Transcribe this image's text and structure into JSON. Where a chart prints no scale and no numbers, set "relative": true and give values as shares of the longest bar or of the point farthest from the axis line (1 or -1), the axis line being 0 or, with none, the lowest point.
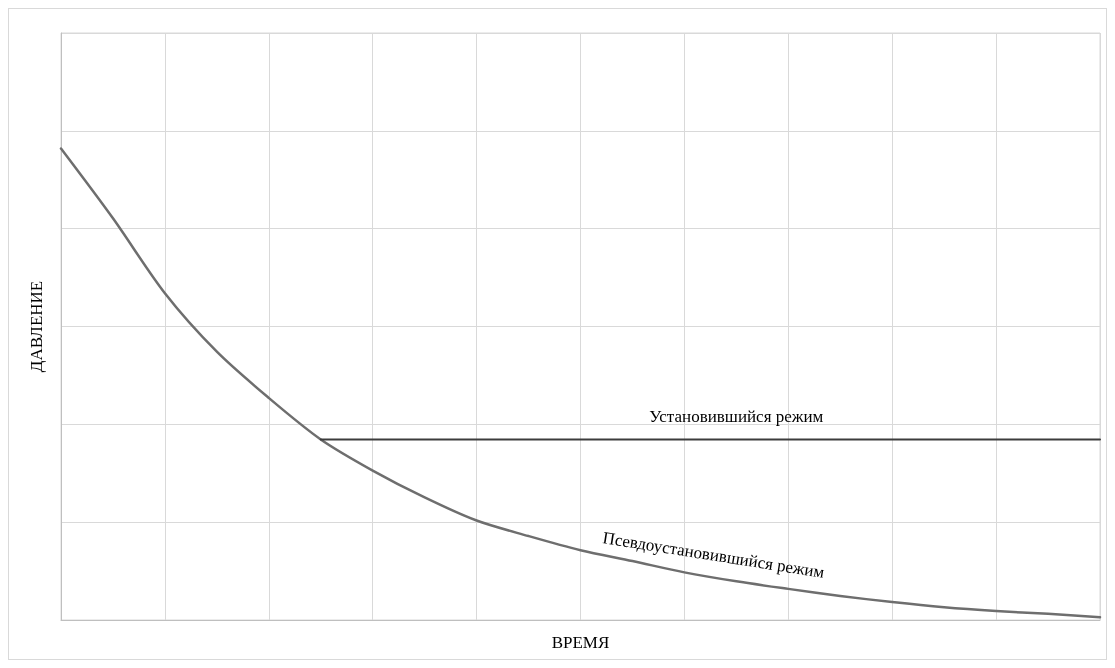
{
  "chart_data": {
    "type": "line",
    "relative": true,
    "xlabel": "ВРЕМЯ",
    "ylabel": "ДАВЛЕНИЕ",
    "grid": true,
    "legend": false,
    "marker": "none",
    "line_style": "solid",
    "categories": [
      null,
      null,
      null,
      null,
      null,
      null,
      null,
      null,
      null,
      null,
      null,
      null,
      null,
      null,
      null,
      null,
      null,
      null,
      null,
      null,
      null
    ],
    "series": [
      {
        "name": "Псевдоустановившийся режим",
        "color": "#6e6e6e",
        "values": [
          1,
          0.852,
          0.693,
          0.569,
          0.471,
          0.383,
          0.317,
          0.26,
          0.211,
          0.178,
          0.148,
          0.125,
          0.101,
          0.082,
          0.066,
          0.051,
          0.038,
          0.027,
          0.019,
          0.013,
          0.006
        ]
      },
      {
        "name": "Установившийся режим",
        "color": "#3c3c3c",
        "values": [
          null,
          null,
          null,
          null,
          null,
          0.383,
          0.383,
          0.383,
          0.383,
          0.383,
          0.383,
          0.383,
          0.383,
          0.383,
          0.383,
          0.383,
          0.383,
          0.383,
          0.383,
          0.383,
          0.383
        ]
      }
    ]
  }
}
